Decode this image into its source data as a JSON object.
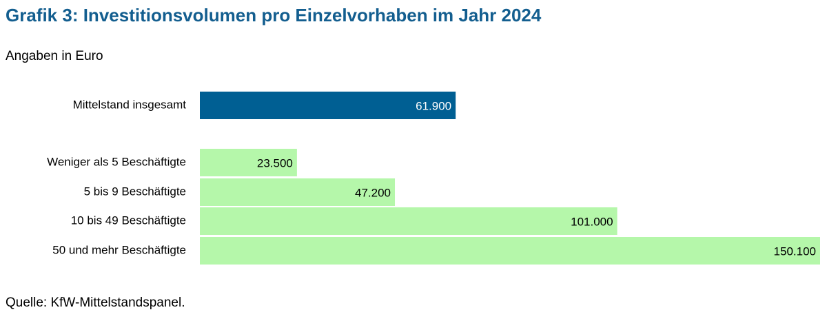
{
  "chart_data": {
    "type": "bar",
    "orientation": "horizontal",
    "title": "Grafik 3: Investitionsvolumen pro Einzelvorhaben im Jahr 2024",
    "subtitle": "Angaben in Euro",
    "source": "Quelle: KfW-Mittelstandspanel.",
    "categories": [
      "Mittelstand insgesamt",
      "Weniger als 5 Beschäftigte",
      "5 bis 9 Beschäftigte",
      "10 bis 49 Beschäftigte",
      "50 und mehr Beschäftigte"
    ],
    "values": [
      61900,
      23500,
      47200,
      101000,
      150100
    ],
    "value_labels": [
      "61.900",
      "23.500",
      "47.200",
      "101.000",
      "150.100"
    ],
    "colors": [
      "#005f93",
      "#b5f7aa",
      "#b5f7aa",
      "#b5f7aa",
      "#b5f7aa"
    ],
    "label_colors": [
      "#ffffff",
      "#000000",
      "#000000",
      "#000000",
      "#000000"
    ]
  }
}
